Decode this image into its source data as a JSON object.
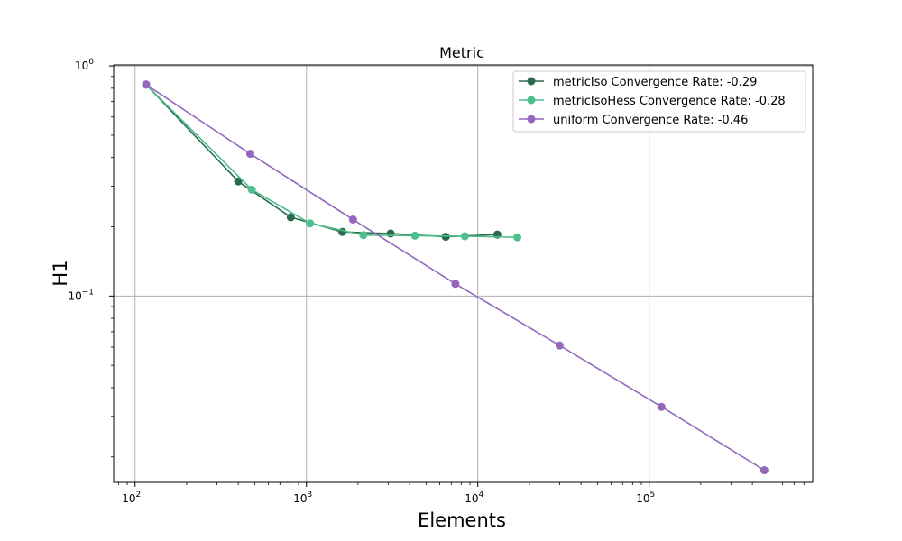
{
  "chart_data": {
    "type": "line",
    "title": "Metric",
    "xlabel": "Elements",
    "ylabel": "H1",
    "xscale": "log",
    "yscale": "log",
    "xlim": [
      75,
      900000
    ],
    "ylim": [
      0.0155,
      1.01
    ],
    "grid": true,
    "legend_position": "top-right",
    "x_ticks": [
      {
        "value": 100,
        "base": "10",
        "exp": "2"
      },
      {
        "value": 1000,
        "base": "10",
        "exp": "3"
      },
      {
        "value": 10000,
        "base": "10",
        "exp": "4"
      },
      {
        "value": 100000,
        "base": "10",
        "exp": "5"
      }
    ],
    "y_ticks": [
      {
        "value": 1,
        "base": "10",
        "exp": "0"
      },
      {
        "value": 0.1,
        "base": "10",
        "exp": "−1"
      }
    ],
    "series": [
      {
        "name": "metricIso Convergence Rate: -0.29",
        "color": "#2a6b4e",
        "x": [
          116,
          400,
          810,
          1620,
          3100,
          6500,
          13000
        ],
        "y": [
          0.83,
          0.315,
          0.22,
          0.19,
          0.187,
          0.181,
          0.185
        ]
      },
      {
        "name": "metricIsoHess Convergence Rate: -0.28",
        "color": "#4fc08d",
        "x": [
          116,
          480,
          1050,
          2150,
          4300,
          8400,
          17000
        ],
        "y": [
          0.83,
          0.29,
          0.207,
          0.184,
          0.183,
          0.182,
          0.18
        ]
      },
      {
        "name": "uniform Convergence Rate: -0.46",
        "color": "#9467bd",
        "x": [
          116,
          470,
          1870,
          7400,
          30000,
          118000,
          470000
        ],
        "y": [
          0.83,
          0.415,
          0.215,
          0.113,
          0.061,
          0.033,
          0.0175
        ]
      }
    ]
  }
}
